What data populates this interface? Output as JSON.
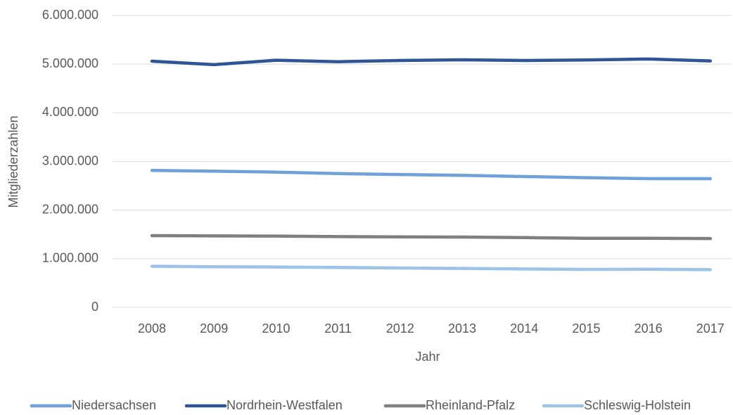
{
  "chart_data": {
    "type": "line",
    "x_label": "Jahr",
    "y_label": "Mitgliederzahlen",
    "categories": [
      "2008",
      "2009",
      "2010",
      "2011",
      "2012",
      "2013",
      "2014",
      "2015",
      "2016",
      "2017"
    ],
    "series": [
      {
        "name": "Niedersachsen",
        "color": "#6fa0d8",
        "values": [
          2815000,
          2800000,
          2780000,
          2750000,
          2730000,
          2715000,
          2690000,
          2665000,
          2645000,
          2645000
        ]
      },
      {
        "name": "Nordrhein-Westfalen",
        "color": "#2f5597",
        "values": [
          5060000,
          4990000,
          5080000,
          5050000,
          5075000,
          5090000,
          5075000,
          5085000,
          5105000,
          5065000
        ]
      },
      {
        "name": "Rheinland-Pfalz",
        "color": "#7f7f7f",
        "values": [
          1475000,
          1470000,
          1465000,
          1455000,
          1450000,
          1445000,
          1435000,
          1420000,
          1420000,
          1415000
        ]
      },
      {
        "name": "Schleswig-Holstein",
        "color": "#9dc3e6",
        "values": [
          845000,
          835000,
          830000,
          820000,
          810000,
          800000,
          790000,
          780000,
          785000,
          775000
        ]
      }
    ],
    "ylim": [
      0,
      6000000
    ],
    "yticks": [
      0,
      {
        "value": 1000000,
        "label": "1.000.000"
      },
      {
        "value": 2000000,
        "label": "2.000.000"
      },
      {
        "value": 3000000,
        "label": "3.000.000"
      },
      {
        "value": 4000000,
        "label": "4.000.000"
      },
      {
        "value": 5000000,
        "label": "5.000.000"
      },
      {
        "value": 6000000,
        "label": "6.000.000"
      }
    ],
    "grid": true,
    "legend": "bottom"
  }
}
